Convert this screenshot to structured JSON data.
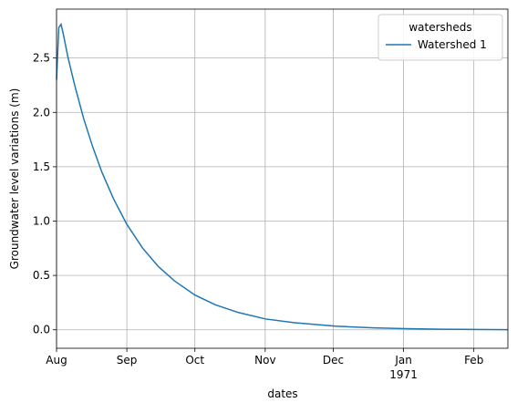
{
  "chart_data": {
    "type": "line",
    "xlabel": "dates",
    "ylabel": "Groundwater level variations (m)",
    "x": [
      0,
      1,
      2,
      3,
      5,
      8,
      12,
      16,
      20,
      25,
      31,
      38,
      45,
      52,
      61,
      70,
      80,
      92,
      105,
      123,
      140,
      154,
      170,
      185,
      199
    ],
    "series": [
      {
        "name": "Watershed 1",
        "color": "#1f77b4",
        "values": [
          2.3,
          2.78,
          2.81,
          2.72,
          2.51,
          2.25,
          1.94,
          1.68,
          1.45,
          1.21,
          0.97,
          0.75,
          0.58,
          0.45,
          0.32,
          0.23,
          0.16,
          0.1,
          0.065,
          0.033,
          0.018,
          0.01,
          0.005,
          0.003,
          0.001
        ]
      }
    ],
    "xlim": [
      0,
      199
    ],
    "xticks": [
      {
        "value": 0,
        "label": "Aug"
      },
      {
        "value": 31,
        "label": "Sep"
      },
      {
        "value": 61,
        "label": "Oct"
      },
      {
        "value": 92,
        "label": "Nov"
      },
      {
        "value": 122,
        "label": "Dec"
      },
      {
        "value": 153,
        "label": "Jan"
      },
      {
        "value": 184,
        "label": "Feb"
      }
    ],
    "year_label": "1971",
    "ylim": [
      -0.17,
      2.95
    ],
    "yticks": [
      {
        "value": 0,
        "label": "0.0"
      },
      0.5,
      {
        "value": 1,
        "label": "1.0"
      },
      1.5,
      {
        "value": 2,
        "label": "2.0"
      },
      2.5
    ],
    "grid": true,
    "legend": {
      "title": "watersheds",
      "position": "upper right"
    }
  }
}
